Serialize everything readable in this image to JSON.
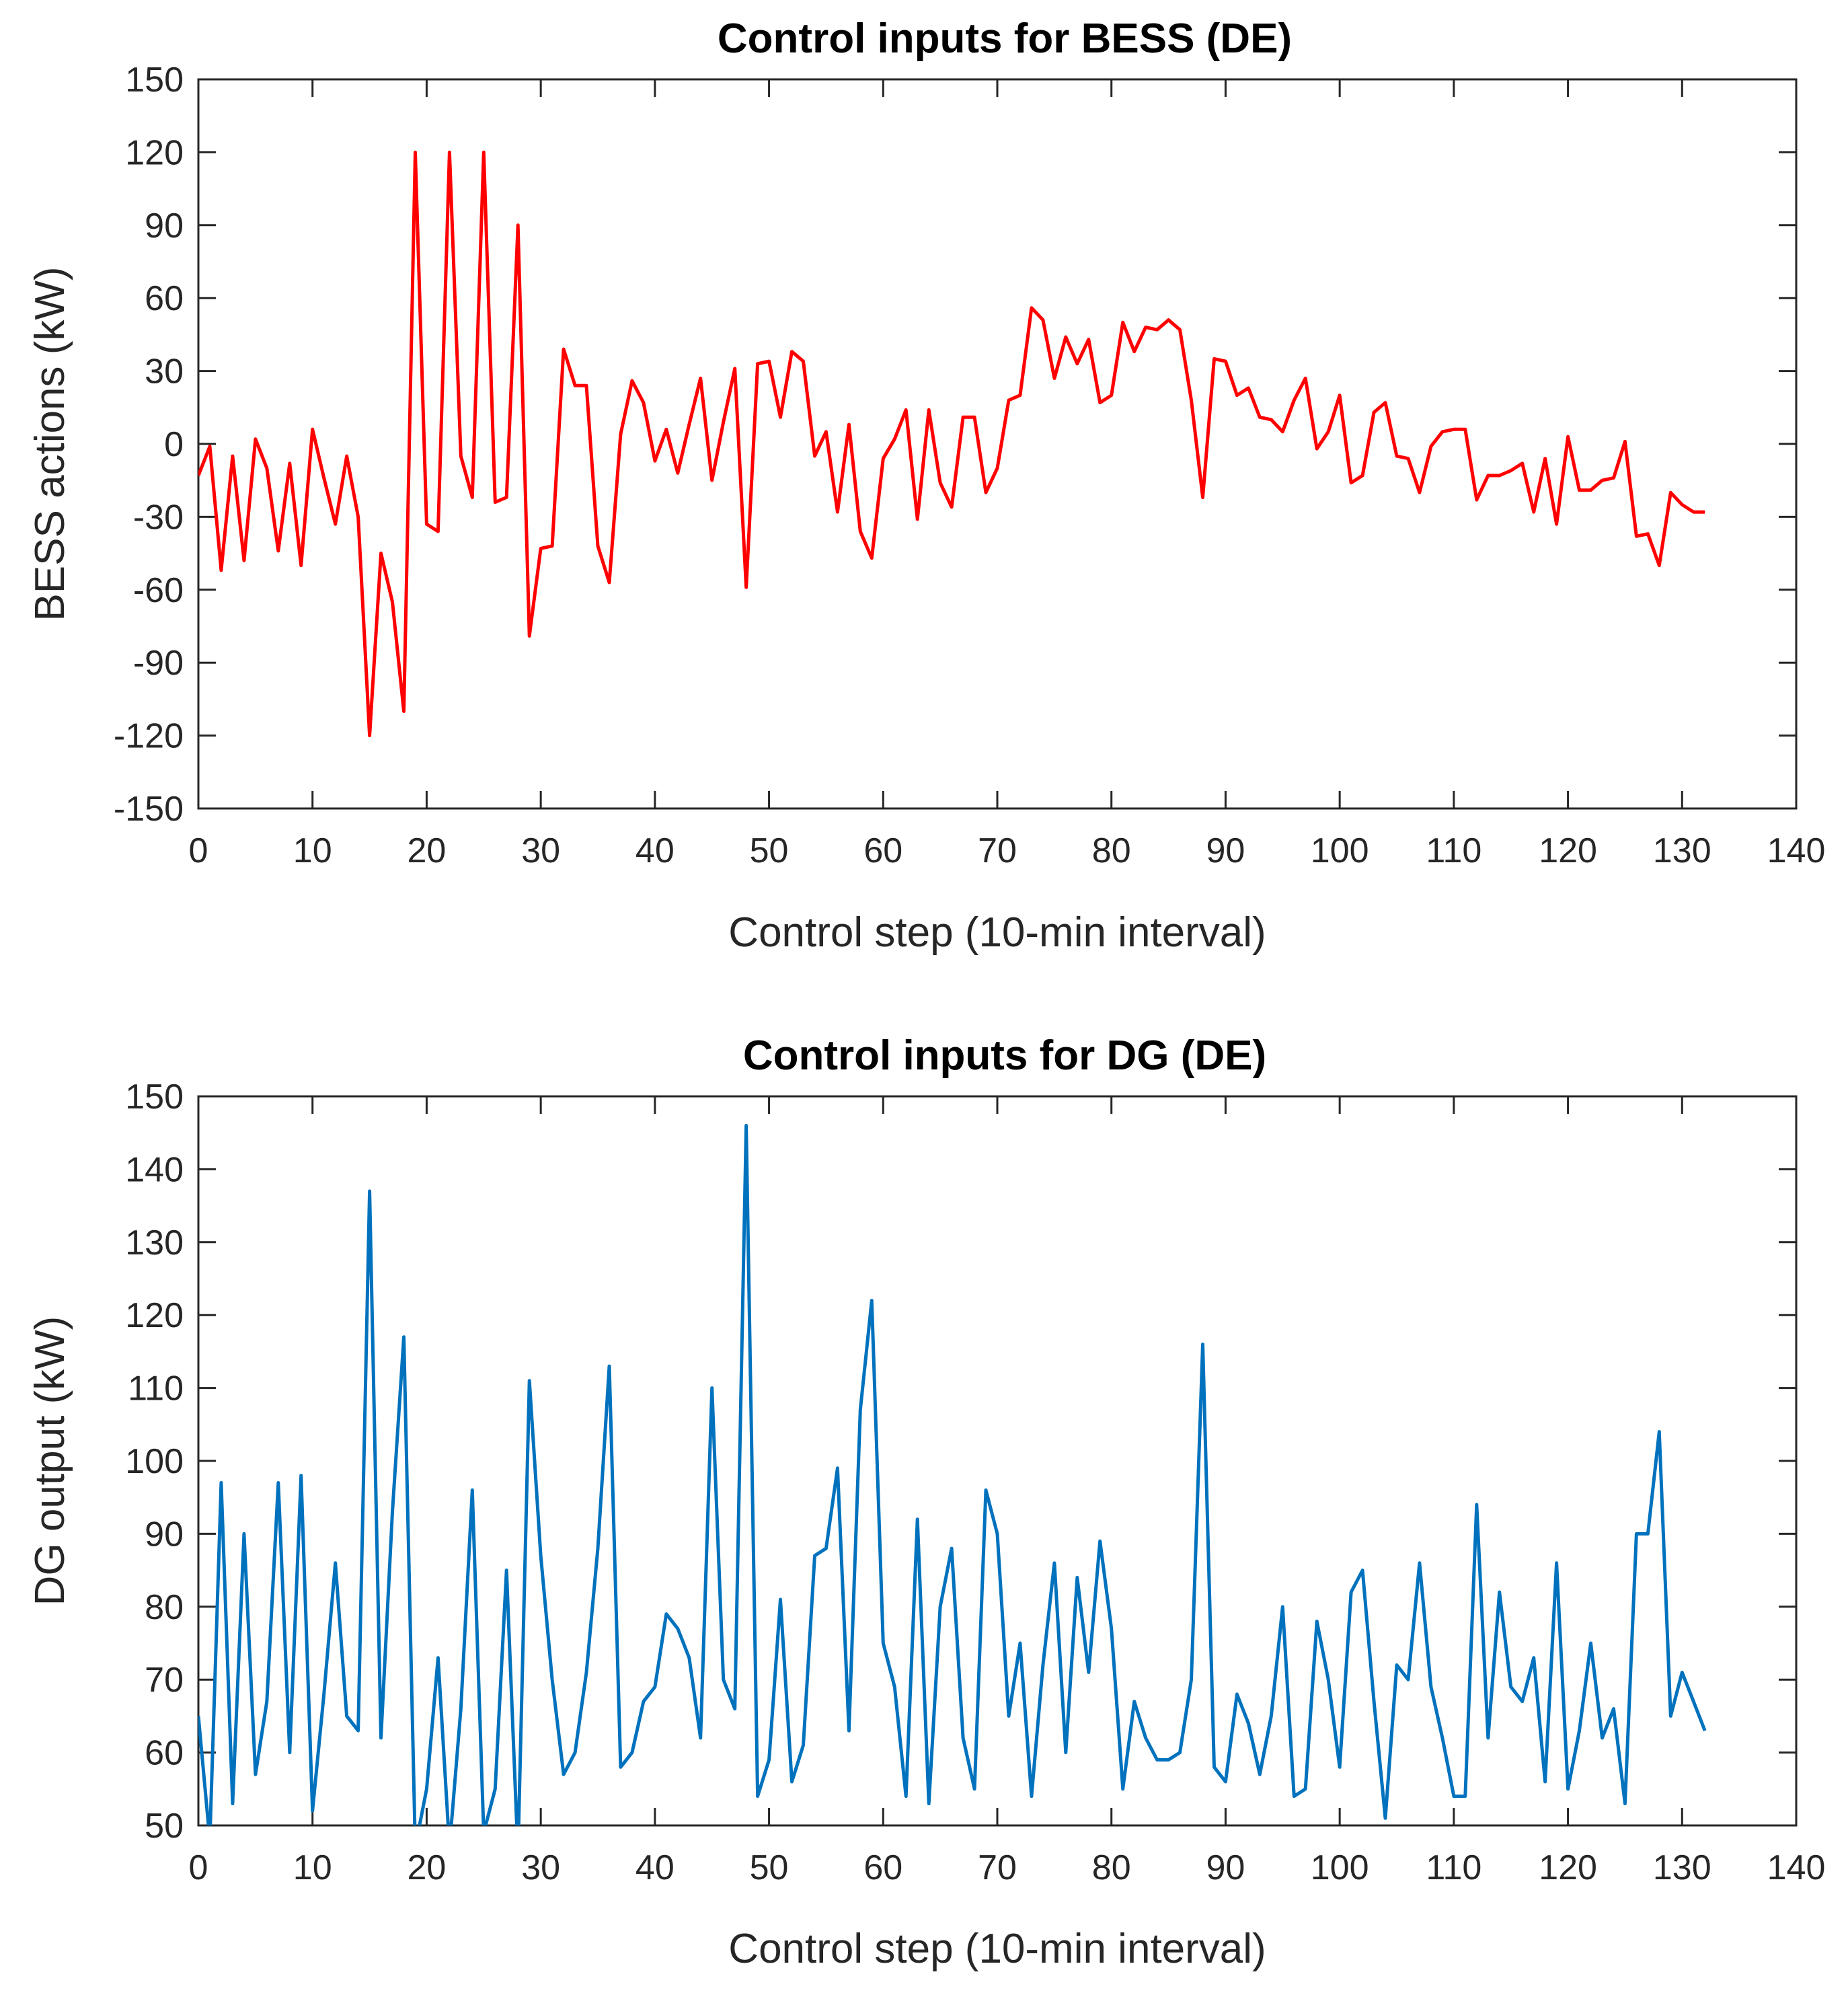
{
  "chart_data": [
    {
      "type": "line",
      "title": "Control inputs for BESS (DE)",
      "xlabel": "Control step (10-min interval)",
      "ylabel": "BESS actions (kW)",
      "xlim": [
        0,
        140
      ],
      "ylim": [
        -150,
        150
      ],
      "xticks": [
        0,
        10,
        20,
        30,
        40,
        50,
        60,
        70,
        80,
        90,
        100,
        110,
        120,
        130,
        140
      ],
      "yticks": [
        -150,
        -120,
        -90,
        -60,
        -30,
        0,
        30,
        60,
        90,
        120,
        150
      ],
      "xtick_labels": [
        "0",
        "10",
        "20",
        "30",
        "40",
        "50",
        "60",
        "70",
        "80",
        "90",
        "100",
        "110",
        "120",
        "130",
        "140"
      ],
      "ytick_labels": [
        "-150",
        "-120",
        "-90",
        "-60",
        "-30",
        "0",
        "30",
        "60",
        "90",
        "120",
        "150"
      ],
      "grid": false,
      "series": [
        {
          "name": "BESS",
          "color": "#ff0000",
          "x": [
            0,
            1,
            2,
            3,
            4,
            5,
            6,
            7,
            8,
            9,
            10,
            11,
            12,
            13,
            14,
            15,
            16,
            17,
            18,
            19,
            20,
            21,
            22,
            23,
            24,
            25,
            26,
            27,
            28,
            29,
            30,
            31,
            32,
            33,
            34,
            35,
            36,
            37,
            38,
            39,
            40,
            41,
            42,
            43,
            44,
            45,
            46,
            47,
            48,
            49,
            50,
            51,
            52,
            53,
            54,
            55,
            56,
            57,
            58,
            59,
            60,
            61,
            62,
            63,
            64,
            65,
            66,
            67,
            68,
            69,
            70,
            71,
            72,
            73,
            74,
            75,
            76,
            77,
            78,
            79,
            80,
            81,
            82,
            83,
            84,
            85,
            86,
            87,
            88,
            89,
            90,
            91,
            92,
            93,
            94,
            95,
            96,
            97,
            98,
            99,
            100,
            101,
            102,
            103,
            104,
            105,
            106,
            107,
            108,
            109,
            110,
            111,
            112,
            113,
            114,
            115,
            116,
            117,
            118,
            119,
            120,
            121,
            122,
            123,
            124,
            125,
            126,
            127,
            128,
            129,
            130,
            131,
            132
          ],
          "values": [
            -13,
            -1,
            -52,
            -5,
            -48,
            2,
            -10,
            -44,
            -8,
            -50,
            6,
            -14,
            -33,
            -5,
            -30,
            -120,
            -45,
            -65,
            -110,
            120,
            -33,
            -36,
            120,
            -5,
            -22,
            120,
            -24,
            -22,
            90,
            -79,
            -43,
            -42,
            39,
            24,
            24,
            -42,
            -57,
            4,
            26,
            17,
            -7,
            6,
            -12,
            8,
            27,
            -15,
            9,
            31,
            -59,
            33,
            34,
            11,
            38,
            34,
            -5,
            5,
            -28,
            8,
            -36,
            -47,
            -6,
            2,
            14,
            -31,
            14,
            -16,
            -26,
            11,
            11,
            -20,
            -10,
            18,
            20,
            56,
            51,
            27,
            44,
            33,
            43,
            17,
            20,
            50,
            38,
            48,
            47,
            51,
            47,
            18,
            -22,
            35,
            34,
            20,
            23,
            11,
            10,
            5,
            18,
            27,
            -2,
            5,
            20,
            -16,
            -13,
            13,
            17,
            -5,
            -6,
            -20,
            -1,
            5,
            6,
            6,
            -23,
            -13,
            -13,
            -11,
            -8,
            -28,
            -6,
            -33,
            3,
            -19,
            -19,
            -15,
            -14,
            1,
            -38,
            -37,
            -50,
            -20,
            -25,
            -28,
            -28
          ]
        }
      ]
    },
    {
      "type": "line",
      "title": "Control inputs for DG (DE)",
      "xlabel": "Control step (10-min interval)",
      "ylabel": "DG output (kW)",
      "xlim": [
        0,
        140
      ],
      "ylim": [
        50,
        150
      ],
      "xticks": [
        0,
        10,
        20,
        30,
        40,
        50,
        60,
        70,
        80,
        90,
        100,
        110,
        120,
        130,
        140
      ],
      "yticks": [
        50,
        60,
        70,
        80,
        90,
        100,
        110,
        120,
        130,
        140,
        150
      ],
      "xtick_labels": [
        "0",
        "10",
        "20",
        "30",
        "40",
        "50",
        "60",
        "70",
        "80",
        "90",
        "100",
        "110",
        "120",
        "130",
        "140"
      ],
      "ytick_labels": [
        "50",
        "60",
        "70",
        "80",
        "90",
        "100",
        "110",
        "120",
        "130",
        "140",
        "150"
      ],
      "grid": false,
      "series": [
        {
          "name": "DG",
          "color": "#0072bd",
          "x": [
            0,
            1,
            2,
            3,
            4,
            5,
            6,
            7,
            8,
            9,
            10,
            11,
            12,
            13,
            14,
            15,
            16,
            17,
            18,
            19,
            20,
            21,
            22,
            23,
            24,
            25,
            26,
            27,
            28,
            29,
            30,
            31,
            32,
            33,
            34,
            35,
            36,
            37,
            38,
            39,
            40,
            41,
            42,
            43,
            44,
            45,
            46,
            47,
            48,
            49,
            50,
            51,
            52,
            53,
            54,
            55,
            56,
            57,
            58,
            59,
            60,
            61,
            62,
            63,
            64,
            65,
            66,
            67,
            68,
            69,
            70,
            71,
            72,
            73,
            74,
            75,
            76,
            77,
            78,
            79,
            80,
            81,
            82,
            83,
            84,
            85,
            86,
            87,
            88,
            89,
            90,
            91,
            92,
            93,
            94,
            95,
            96,
            97,
            98,
            99,
            100,
            101,
            102,
            103,
            104,
            105,
            106,
            107,
            108,
            109,
            110,
            111,
            112,
            113,
            114,
            115,
            116,
            117,
            118,
            119,
            120,
            121,
            122,
            123,
            124,
            125,
            126,
            127,
            128,
            129,
            130,
            131,
            132
          ],
          "values": [
            65,
            48,
            97,
            53,
            90,
            57,
            67,
            97,
            60,
            98,
            52,
            68,
            86,
            65,
            63,
            137,
            62,
            93,
            117,
            47,
            55,
            73,
            47,
            66,
            96,
            49,
            55,
            85,
            46,
            111,
            87,
            70,
            57,
            60,
            71,
            88,
            113,
            58,
            60,
            67,
            69,
            79,
            77,
            73,
            62,
            110,
            70,
            66,
            146,
            54,
            59,
            81,
            56,
            61,
            87,
            88,
            99,
            63,
            107,
            122,
            75,
            69,
            54,
            92,
            53,
            80,
            88,
            62,
            55,
            96,
            90,
            65,
            75,
            54,
            72,
            86,
            60,
            84,
            71,
            89,
            77,
            55,
            67,
            62,
            59,
            59,
            60,
            70,
            116,
            58,
            56,
            68,
            64,
            57,
            65,
            80,
            54,
            55,
            78,
            70,
            58,
            82,
            85,
            67,
            51,
            72,
            70,
            86,
            69,
            62,
            54,
            54,
            94,
            62,
            82,
            69,
            67,
            73,
            56,
            86,
            55,
            63,
            75,
            62,
            66,
            53,
            90,
            90,
            104,
            65,
            71,
            67,
            63
          ]
        }
      ]
    }
  ]
}
